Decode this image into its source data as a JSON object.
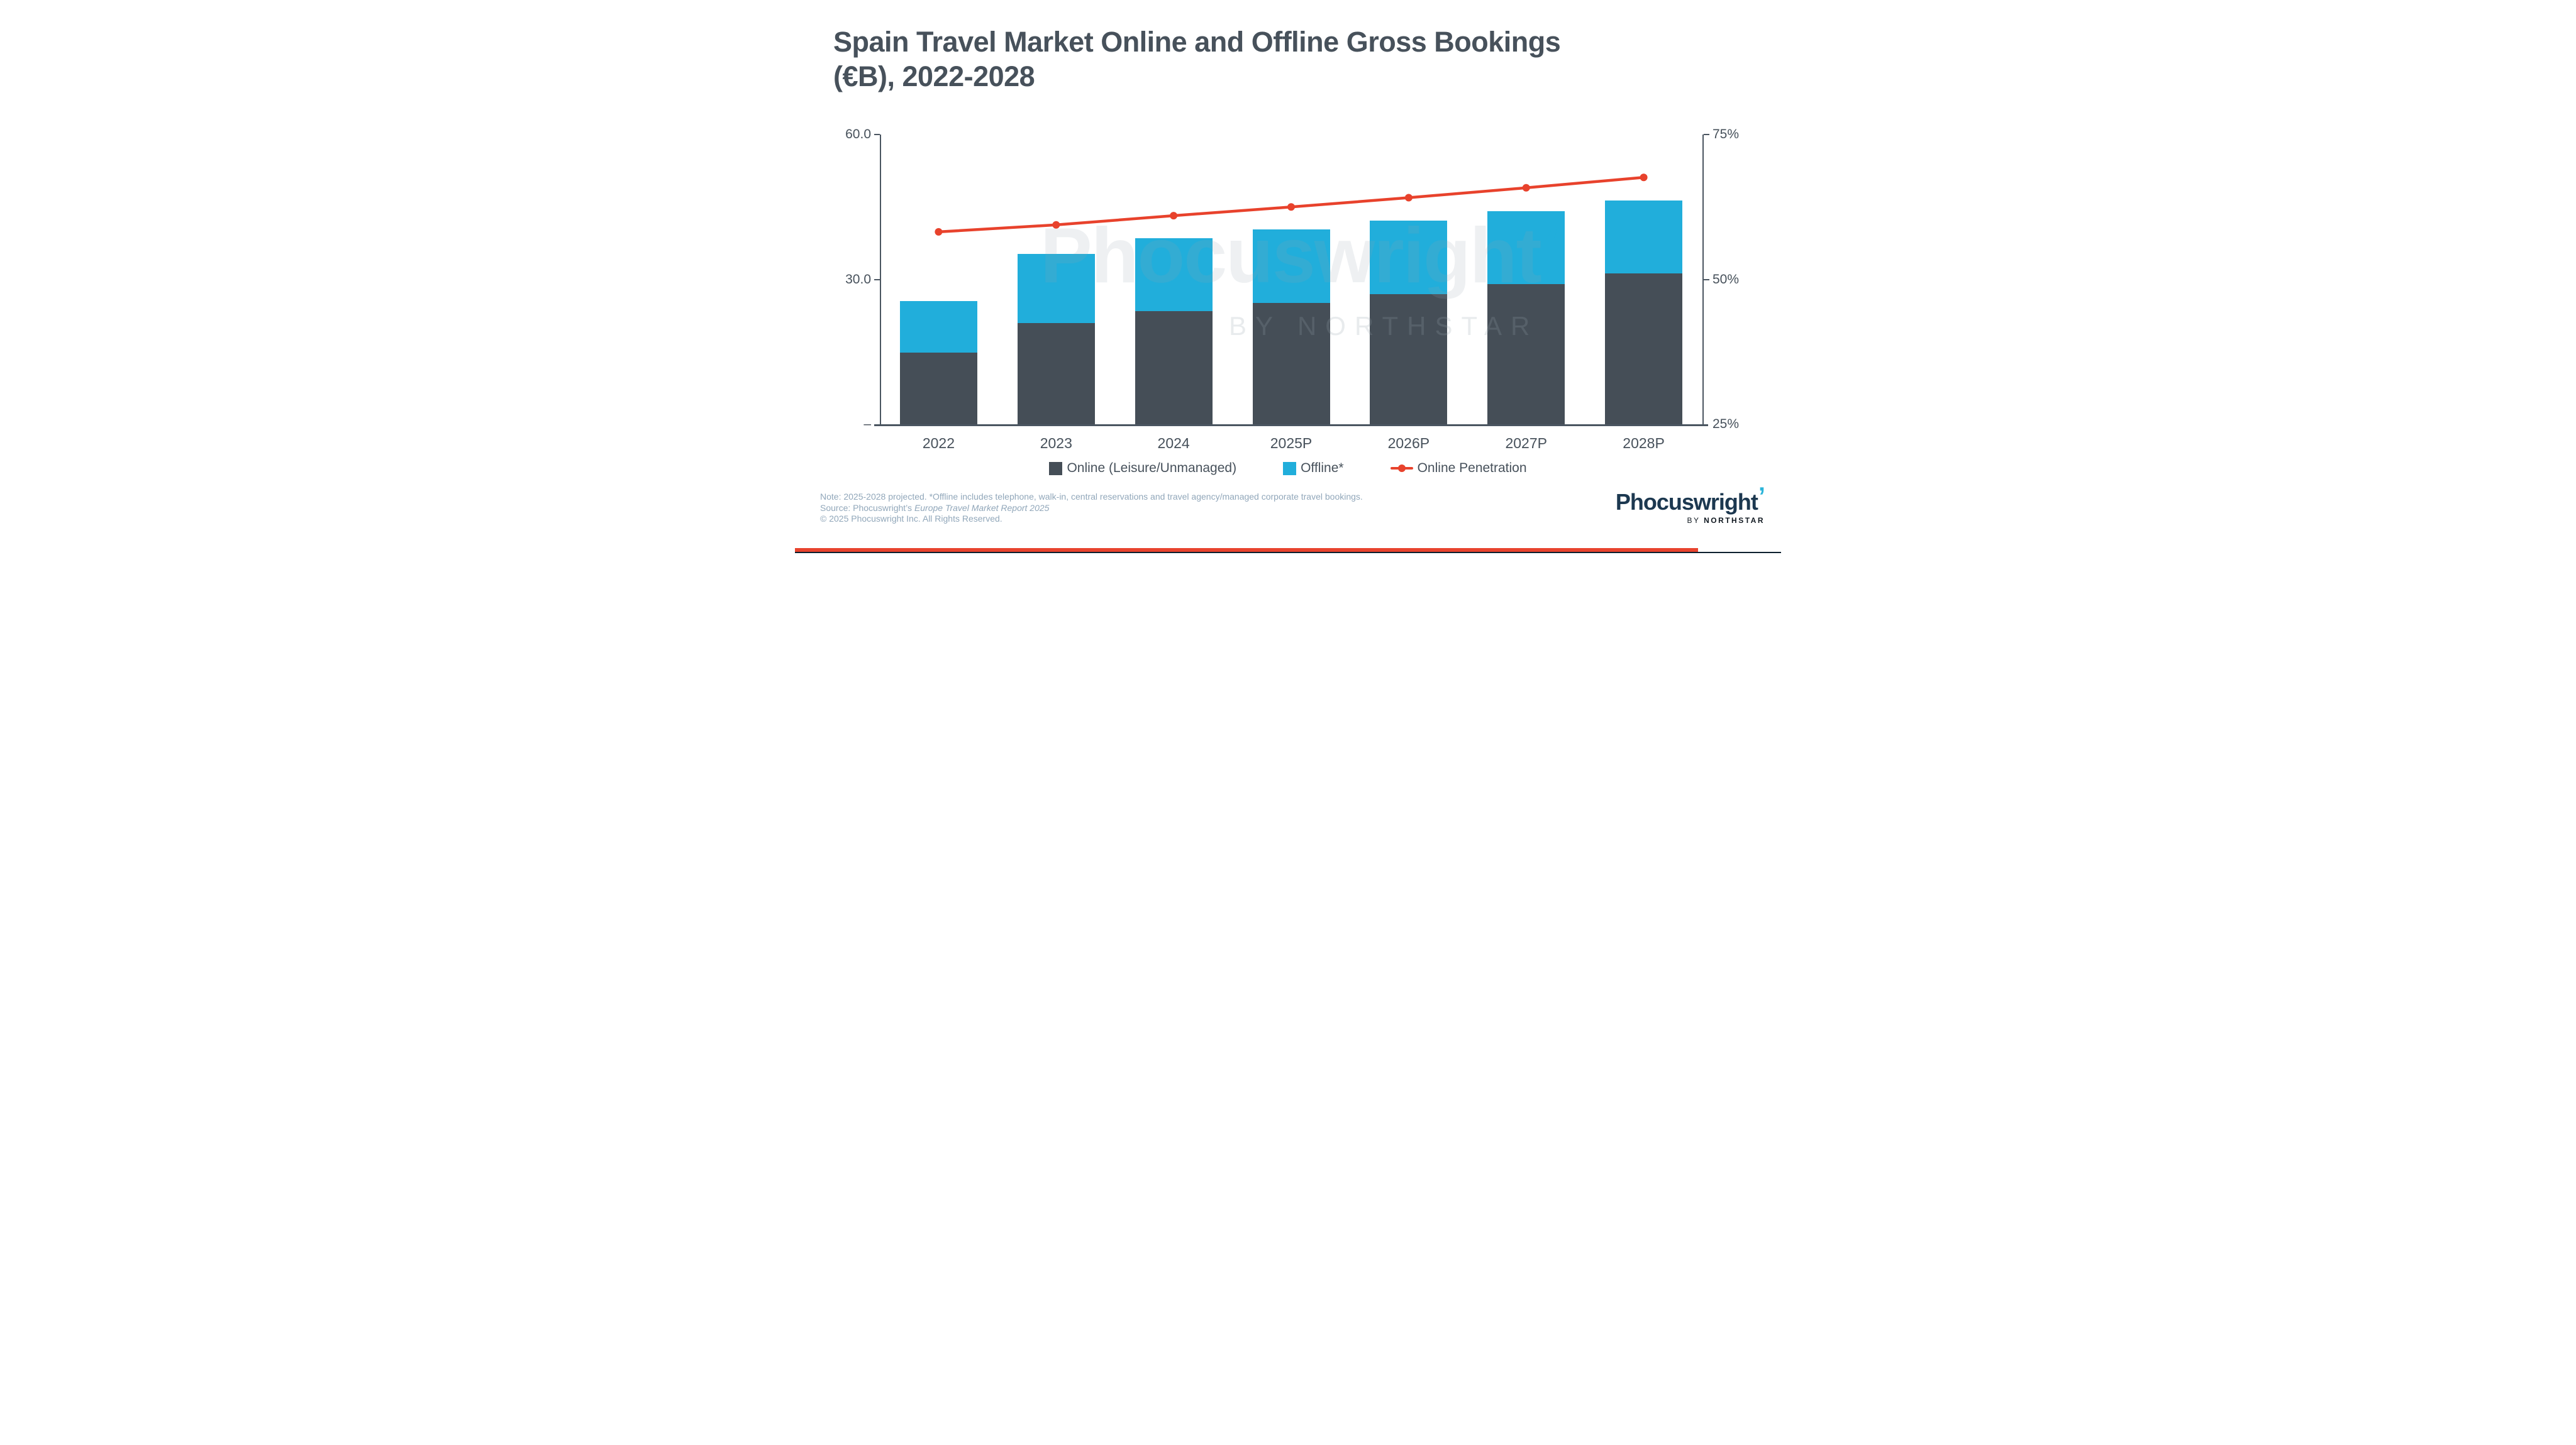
{
  "slide": {
    "title_line1": "Spain Travel Market Online and Offline Gross Bookings",
    "title_line2": "(€B), 2022-2028"
  },
  "chart_data": {
    "type": "bar",
    "subtype": "stacked-bars-with-line",
    "title": "Spain Travel Market Online and Offline Gross Bookings (€B), 2022-2028",
    "categories": [
      "2022",
      "2023",
      "2024",
      "2025P",
      "2026P",
      "2027P",
      "2028P"
    ],
    "series": [
      {
        "name": "Online (Leisure/Unmanaged)",
        "type": "bar",
        "stack": "gross-bookings",
        "color": "#454E57",
        "values": [
          14.8,
          20.9,
          23.4,
          25.1,
          27.0,
          29.0,
          31.2
        ]
      },
      {
        "name": "Offline*",
        "type": "bar",
        "stack": "gross-bookings",
        "color": "#21AEDB",
        "values": [
          10.7,
          14.4,
          15.1,
          15.2,
          15.2,
          15.1,
          15.1
        ]
      },
      {
        "name": "Online Penetration",
        "type": "line",
        "axis": "right",
        "color": "#E8422C",
        "values": [
          58.2,
          59.4,
          61.0,
          62.5,
          64.1,
          65.8,
          67.6
        ]
      }
    ],
    "stack_totals": [
      25.5,
      35.3,
      38.5,
      40.3,
      42.2,
      44.1,
      46.3
    ],
    "left_axis": {
      "min": 0,
      "max": 60,
      "tick_labels": [
        "60.0",
        "30.0",
        "–"
      ],
      "unit": "€ billions"
    },
    "right_axis": {
      "min": 25,
      "max": 75,
      "tick_labels": [
        "75%",
        "50%",
        "25%"
      ],
      "unit": "percent"
    },
    "grid": false,
    "legend_position": "bottom"
  },
  "watermark": {
    "text": "Phocuswright",
    "quote": "’",
    "subtext": "BY NORTHSTAR"
  },
  "footnotes": {
    "note": "Note: 2025-2028 projected. *Offline includes telephone, walk-in, central reservations and travel agency/managed corporate travel bookings.",
    "source_prefix": "Source: Phocuswright’s ",
    "source_italic": "Europe Travel Market Report 2025",
    "copyright": "© 2025 Phocuswright Inc. All Rights Reserved."
  },
  "logo": {
    "name": "Phocuswright",
    "quote": "’",
    "by": "BY ",
    "northstar": "NORTHSTAR"
  },
  "colors": {
    "online_bar": "#454E57",
    "offline_bar": "#21AEDB",
    "penetration_line": "#E8422C",
    "title_text": "#47515B",
    "footnote_text": "#91A7BA",
    "logo_navy": "#1C3850",
    "logo_cyan": "#2BB4D9",
    "bottom_red_bar": "#E8432D",
    "bottom_navy_bar": "#0C1F2E"
  }
}
